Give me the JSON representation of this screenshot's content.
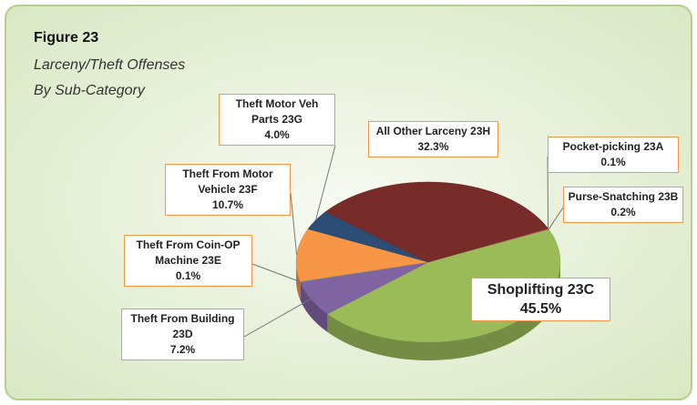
{
  "chart_data": {
    "type": "pie",
    "title": "Figure 23",
    "subtitle": [
      "Larceny/Theft Offenses",
      "By Sub-Category"
    ],
    "categories": [
      "Pocket-picking 23A",
      "Purse-Snatching 23B",
      "Shoplifting 23C",
      "Theft From Building 23D",
      "Theft From Coin-OP Machine 23E",
      "Theft From Motor Vehicle 23F",
      "Theft Motor Veh Parts 23G",
      "All Other Larceny 23H"
    ],
    "values": [
      0.1,
      0.2,
      45.5,
      7.2,
      0.1,
      10.7,
      4.0,
      32.3
    ],
    "value_labels": [
      "0.1%",
      "0.2%",
      "45.5%",
      "7.2%",
      "0.1%",
      "10.7%",
      "4.0%",
      "32.3%"
    ],
    "colors": [
      "#4f81bd",
      "#c0504d",
      "#9bbb59",
      "#8064a2",
      "#4bacc6",
      "#f79646",
      "#2c4d75",
      "#772c2a"
    ]
  }
}
